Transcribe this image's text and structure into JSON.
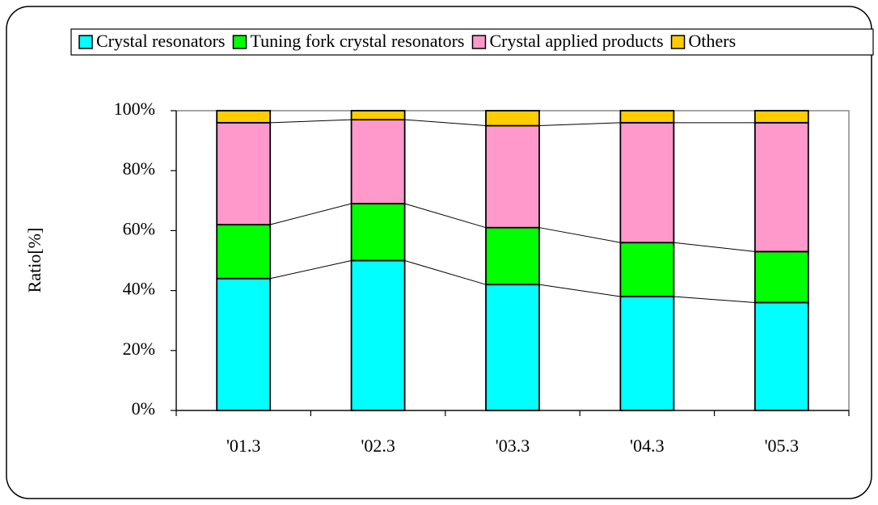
{
  "chart_data": {
    "type": "stacked-bar",
    "y_label": "Ratio[%]",
    "categories": [
      "'01.3",
      "'02.3",
      "'03.3",
      "'04.3",
      "'05.3"
    ],
    "series": [
      {
        "name": "Crystal resonators",
        "color": "#00ffff",
        "values": [
          44,
          50,
          42,
          38,
          36
        ]
      },
      {
        "name": "Tuning fork crystal resonators",
        "color": "#00ff00",
        "values": [
          18,
          19,
          19,
          18,
          17
        ]
      },
      {
        "name": "Crystal applied products",
        "color": "#ff99cc",
        "values": [
          34,
          28,
          34,
          40,
          43
        ]
      },
      {
        "name": "Others",
        "color": "#ffcc00",
        "values": [
          4,
          3,
          5,
          4,
          4
        ]
      }
    ],
    "ylim": [
      0,
      100
    ],
    "yticks": [
      {
        "value": 0,
        "label": "0%"
      },
      {
        "value": 20,
        "label": "20%"
      },
      {
        "value": 40,
        "label": "40%"
      },
      {
        "value": 60,
        "label": "60%"
      },
      {
        "value": 80,
        "label": "80%"
      },
      {
        "value": 100,
        "label": "100%"
      }
    ],
    "legend": "top"
  }
}
